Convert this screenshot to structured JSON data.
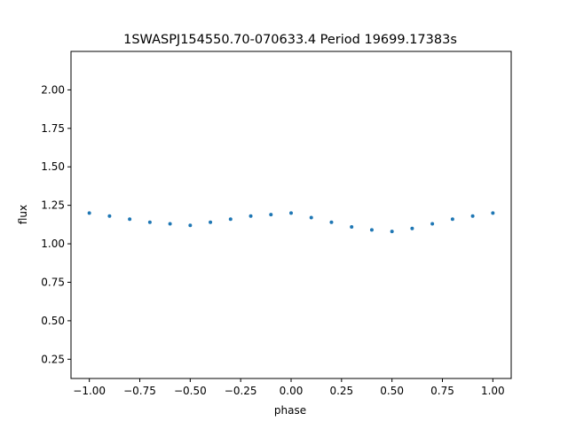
{
  "chart_data": {
    "type": "scatter",
    "title": "1SWASPJ154550.70-070633.4 Period 19699.17383s",
    "xlabel": "phase",
    "ylabel": "flux",
    "xlim": [
      -1.0,
      1.0
    ],
    "ylim": [
      0.125,
      2.25
    ],
    "xticks": [
      "−1.00",
      "−0.75",
      "−0.50",
      "−0.25",
      "0.00",
      "0.25",
      "0.50",
      "0.75",
      "1.00"
    ],
    "xtick_values": [
      -1.0,
      -0.75,
      -0.5,
      -0.25,
      0.0,
      0.25,
      0.5,
      0.75,
      1.0
    ],
    "yticks": [
      "0.25",
      "0.50",
      "0.75",
      "1.00",
      "1.25",
      "1.50",
      "1.75",
      "2.00"
    ],
    "ytick_values": [
      0.25,
      0.5,
      0.75,
      1.0,
      1.25,
      1.5,
      1.75,
      2.0
    ],
    "grid": false,
    "marker_color": "#1f77b4",
    "series": [
      {
        "x": [
          -1.0,
          -0.9,
          -0.8,
          -0.7,
          -0.6,
          -0.5,
          -0.4,
          -0.3,
          -0.2,
          -0.1,
          0.0,
          0.1,
          0.2,
          0.3,
          0.4,
          0.5,
          0.6,
          0.7,
          0.8,
          0.9,
          1.0
        ],
        "y": [
          1.2,
          1.18,
          1.16,
          1.14,
          1.13,
          1.12,
          1.14,
          1.16,
          1.18,
          1.19,
          1.2,
          1.17,
          1.14,
          1.11,
          1.09,
          1.08,
          1.1,
          1.13,
          1.16,
          1.18,
          1.2
        ]
      }
    ]
  }
}
